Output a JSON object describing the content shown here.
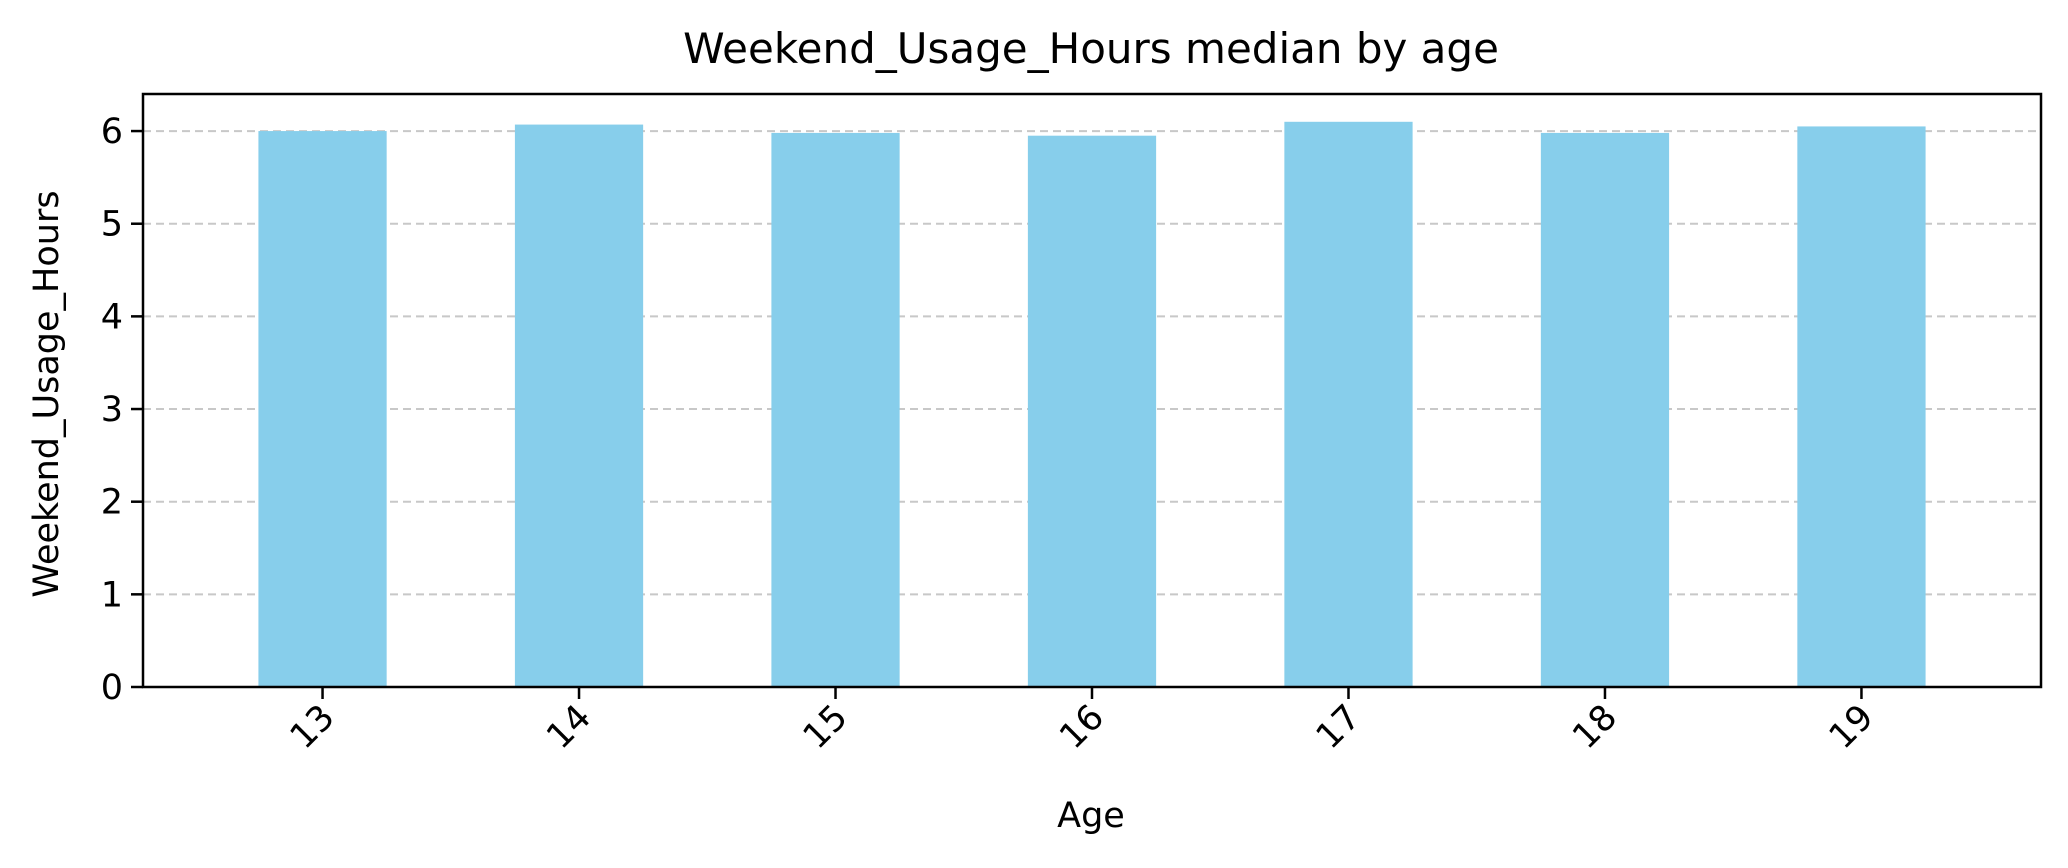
{
  "chart_data": {
    "type": "bar",
    "title": "Weekend_Usage_Hours median by age",
    "xlabel": "Age",
    "ylabel": "Weekend_Usage_Hours",
    "categories": [
      "13",
      "14",
      "15",
      "16",
      "17",
      "18",
      "19"
    ],
    "values": [
      6.0,
      6.07,
      5.98,
      5.95,
      6.1,
      5.98,
      6.05
    ],
    "ylim": [
      0,
      6.4
    ],
    "yticks": [
      0,
      1,
      2,
      3,
      4,
      5,
      6
    ],
    "grid": "y-dashed",
    "xtick_rotation": 45,
    "bar_color": "#87CEEB"
  }
}
